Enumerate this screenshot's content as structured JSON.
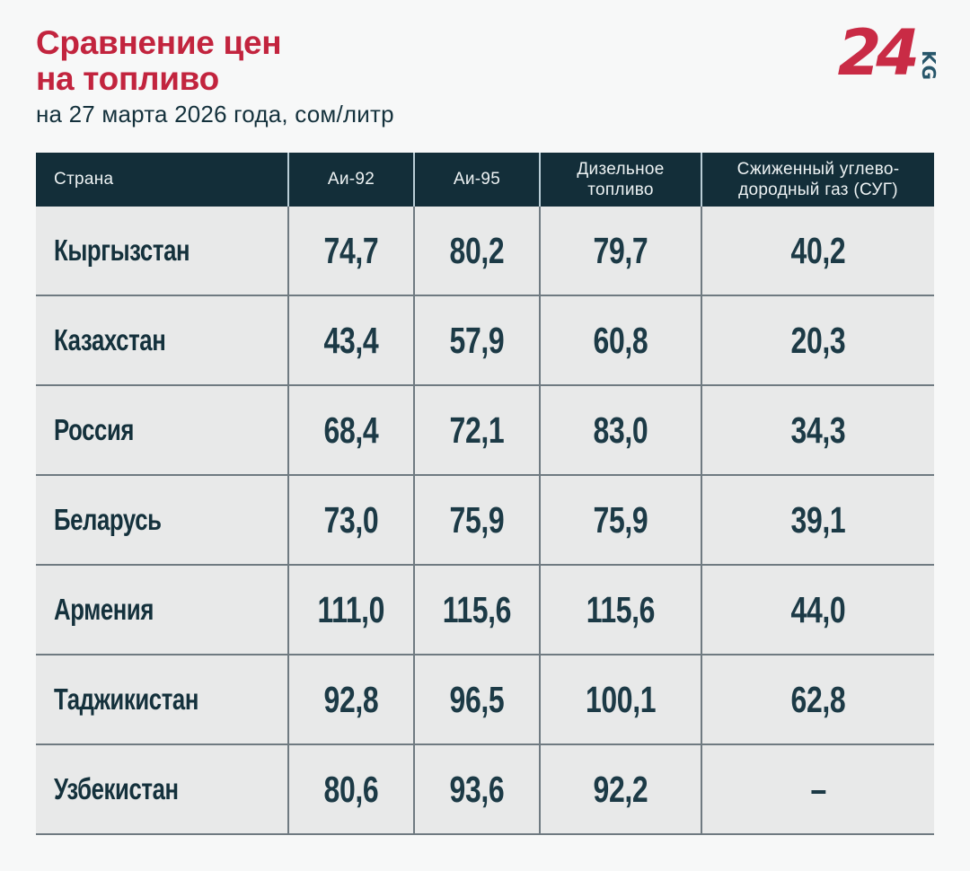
{
  "header": {
    "title_line1": "Сравнение цен",
    "title_line2": "на топливо",
    "subtitle": "на 27 марта 2026 года, сом/литр"
  },
  "logo": {
    "number": "24",
    "suffix": "KG"
  },
  "colors": {
    "title_red": "#c2243e",
    "header_bg": "#132e39",
    "row_bg": "#e8e9e9",
    "grid_line": "#6f7a81",
    "text_navy": "#14313c"
  },
  "table": {
    "columns": [
      {
        "label": "Страна"
      },
      {
        "label": "Аи-92"
      },
      {
        "label": "Аи-95"
      },
      {
        "label": "Дизельное\nтопливо"
      },
      {
        "label": "Сжиженный углево-\nдородный газ (СУГ)"
      }
    ],
    "rows": [
      {
        "country": "Кыргызстан",
        "values": [
          "74,7",
          "80,2",
          "79,7",
          "40,2"
        ]
      },
      {
        "country": "Казахстан",
        "values": [
          "43,4",
          "57,9",
          "60,8",
          "20,3"
        ]
      },
      {
        "country": "Россия",
        "values": [
          "68,4",
          "72,1",
          "83,0",
          "34,3"
        ]
      },
      {
        "country": "Беларусь",
        "values": [
          "73,0",
          "75,9",
          "75,9",
          "39,1"
        ]
      },
      {
        "country": "Армения",
        "values": [
          "111,0",
          "115,6",
          "115,6",
          "44,0"
        ]
      },
      {
        "country": "Таджикистан",
        "values": [
          "92,8",
          "96,5",
          "100,1",
          "62,8"
        ]
      },
      {
        "country": "Узбекистан",
        "values": [
          "80,6",
          "93,6",
          "92,2",
          "–"
        ]
      }
    ]
  },
  "chart_data": {
    "type": "table",
    "title": "Сравнение цен на топливо",
    "subtitle": "на 27 марта 2026 года, сом/литр",
    "unit": "сом/литр",
    "date": "27 марта 2026 года",
    "columns": [
      "Страна",
      "Аи-92",
      "Аи-95",
      "Дизельное топливо",
      "Сжиженный углеводородный газ (СУГ)"
    ],
    "rows": [
      [
        "Кыргызстан",
        74.7,
        80.2,
        79.7,
        40.2
      ],
      [
        "Казахстан",
        43.4,
        57.9,
        60.8,
        20.3
      ],
      [
        "Россия",
        68.4,
        72.1,
        83.0,
        34.3
      ],
      [
        "Беларусь",
        73.0,
        75.9,
        75.9,
        39.1
      ],
      [
        "Армения",
        111.0,
        115.6,
        115.6,
        44.0
      ],
      [
        "Таджикистан",
        92.8,
        96.5,
        100.1,
        62.8
      ],
      [
        "Узбекистан",
        80.6,
        93.6,
        92.2,
        null
      ]
    ]
  }
}
